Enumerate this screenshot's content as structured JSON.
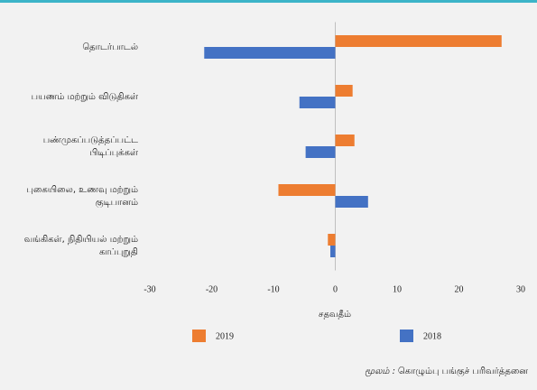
{
  "chart_data": {
    "type": "barh",
    "categories": [
      "தொடர்பாடல்",
      "பயணம் மற்றும் விடுதிகள்",
      "பண்முகப்படுத்தப்பட்ட\nபிடிப்புக்கள்",
      "புகையிலை, உணவு மற்றும்\nகுடிபானம்",
      "வங்கிகள், நிதியியல் மற்றும்\nகாப்புறுதி"
    ],
    "series": [
      {
        "name": "2019",
        "color": "#ed7d31",
        "values": [
          26.9,
          2.8,
          3.1,
          -9.2,
          -1.2
        ]
      },
      {
        "name": "2018",
        "color": "#4472c4",
        "values": [
          -21.2,
          -5.8,
          -4.8,
          5.3,
          -0.8
        ]
      }
    ],
    "xlim": [
      -30,
      30
    ],
    "xticks": [
      -30,
      -20,
      -10,
      0,
      10,
      20,
      30
    ],
    "xlabel": "சதவதீம்",
    "grid": false,
    "source_label": "மூலம் :",
    "source": "கொழும்பு பங்குச் பரிவர்த்தனை"
  }
}
